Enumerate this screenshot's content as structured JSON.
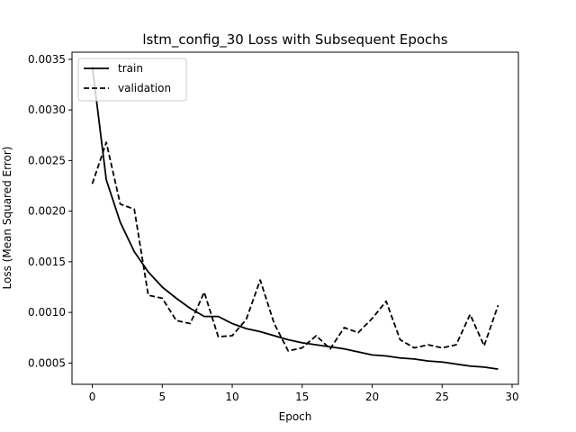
{
  "chart_data": {
    "type": "line",
    "title": "lstm_config_30 Loss with Subsequent Epochs",
    "xlabel": "Epoch",
    "ylabel": "Loss (Mean Squared Error)",
    "xlim": [
      -1.45,
      30.45
    ],
    "ylim": [
      0.00029,
      0.00357
    ],
    "xticks": [
      0,
      5,
      10,
      15,
      20,
      25,
      30
    ],
    "yticks": [
      0.0005,
      0.001,
      0.0015,
      0.002,
      0.0025,
      0.003,
      0.0035
    ],
    "ytick_labels": [
      "0.0005",
      "0.0010",
      "0.0015",
      "0.0020",
      "0.0025",
      "0.0030",
      "0.0035"
    ],
    "grid": false,
    "legend_position": "upper-left",
    "x": [
      0,
      1,
      2,
      3,
      4,
      5,
      6,
      7,
      8,
      9,
      10,
      11,
      12,
      13,
      14,
      15,
      16,
      17,
      18,
      19,
      20,
      21,
      22,
      23,
      24,
      25,
      26,
      27,
      28,
      29
    ],
    "series": [
      {
        "name": "train",
        "style": "solid",
        "color": "#000000",
        "values": [
          0.00343,
          0.00231,
          0.00189,
          0.0016,
          0.0014,
          0.00125,
          0.00114,
          0.00104,
          0.00096,
          0.00096,
          0.00089,
          0.00084,
          0.00081,
          0.00077,
          0.00073,
          0.0007,
          0.00068,
          0.00066,
          0.00064,
          0.00061,
          0.00058,
          0.00057,
          0.00055,
          0.00054,
          0.00052,
          0.00051,
          0.00049,
          0.00047,
          0.00046,
          0.00044
        ]
      },
      {
        "name": "validation",
        "style": "dashed",
        "color": "#000000",
        "values": [
          0.00227,
          0.00268,
          0.00207,
          0.00202,
          0.00117,
          0.00114,
          0.00092,
          0.00089,
          0.0012,
          0.00076,
          0.00077,
          0.00093,
          0.00132,
          0.00089,
          0.00062,
          0.00065,
          0.00077,
          0.00064,
          0.00085,
          0.0008,
          0.00094,
          0.00111,
          0.00073,
          0.00065,
          0.00068,
          0.00065,
          0.00068,
          0.00098,
          0.00067,
          0.00107
        ]
      }
    ]
  }
}
